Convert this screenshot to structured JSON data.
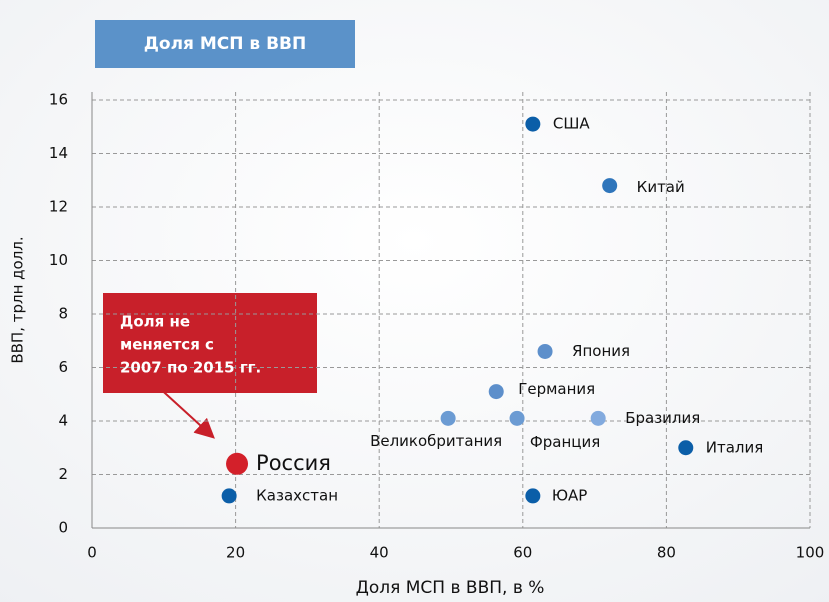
{
  "chart_data": {
    "type": "scatter",
    "title": "Доля МСП в ВВП",
    "x_label": "Доля МСП в ВВП, в %",
    "y_label": "ВВП, трлн долл.",
    "annotation": [
      "Доля не",
      "меняется с",
      "2007 по 2015 гг."
    ],
    "points": [
      {
        "name": "США",
        "x": 61.4,
        "y": 15.1,
        "color": "#0b5ea8"
      },
      {
        "name": "Китай",
        "x": 72.1,
        "y": 12.8,
        "color": "#2f75bb"
      },
      {
        "name": "Япония",
        "x": 63.1,
        "y": 6.6,
        "color": "#5d8fcb"
      },
      {
        "name": "Германия",
        "x": 56.3,
        "y": 5.1,
        "color": "#5d8fcb"
      },
      {
        "name": "Великобритания",
        "x": 49.6,
        "y": 4.1,
        "color": "#6b9bd3"
      },
      {
        "name": "Франция",
        "x": 59.2,
        "y": 4.1,
        "color": "#6b9bd3"
      },
      {
        "name": "Бразилия",
        "x": 70.5,
        "y": 4.1,
        "color": "#82aade"
      },
      {
        "name": "Италия",
        "x": 82.7,
        "y": 3.0,
        "color": "#0b5ea8"
      },
      {
        "name": "Россия",
        "x": 20.2,
        "y": 2.4,
        "color": "#d3202a"
      },
      {
        "name": "Казахстан",
        "x": 19.1,
        "y": 1.2,
        "color": "#0b5ea8"
      },
      {
        "name": "ЮАР",
        "x": 61.4,
        "y": 1.2,
        "color": "#0b5ea8"
      }
    ],
    "xlim": [
      0,
      100
    ],
    "xticks": [
      0,
      20,
      40,
      60,
      80,
      100
    ],
    "ylim": [
      0,
      16
    ],
    "yticks": [
      0,
      2,
      4,
      6,
      8,
      10,
      12,
      14,
      16
    ],
    "grid": true
  }
}
